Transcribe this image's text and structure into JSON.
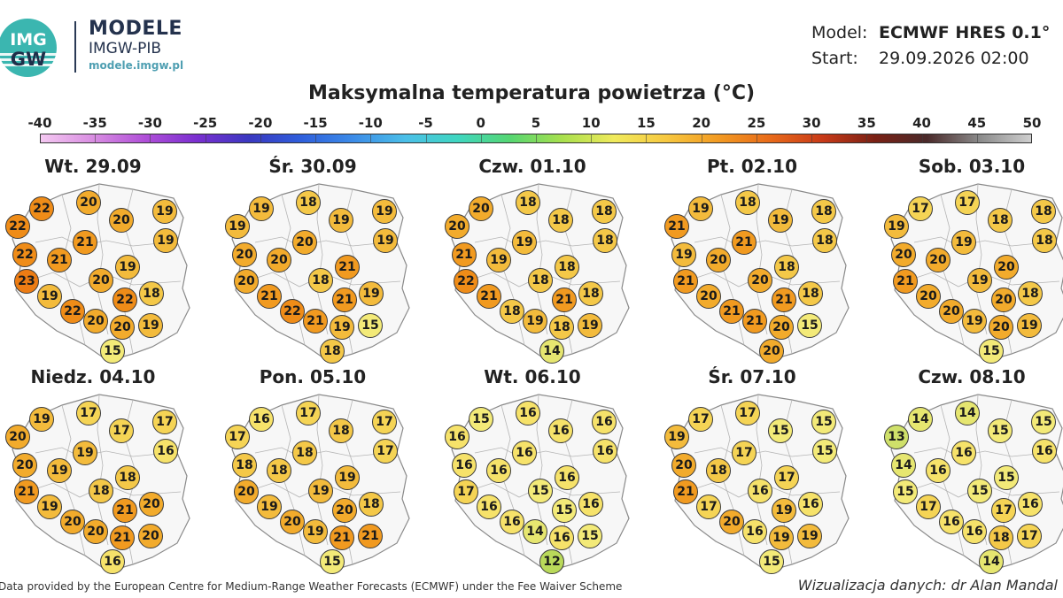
{
  "header": {
    "logo_text_top": "IMG",
    "logo_text_bottom": "GW",
    "brand_title": "MODELE",
    "brand_subtitle": "IMGW-PIB",
    "brand_url": "modele.imgw.pl",
    "model_label": "Model:",
    "model_value": "ECMWF HRES 0.1°",
    "start_label": "Start:",
    "start_value": "29.09.2026 02:00",
    "map_title": "Maksymalna temperatura powietrza (°C)"
  },
  "colorbar": {
    "ticks": [
      "-40",
      "-35",
      "-30",
      "-25",
      "-20",
      "-15",
      "-10",
      "-5",
      "0",
      "5",
      "10",
      "15",
      "20",
      "25",
      "30",
      "35",
      "40",
      "45",
      "50"
    ],
    "min": -40,
    "max": 50,
    "colors": [
      "#f4c8f1",
      "#d98ee2",
      "#b04fd8",
      "#7a2fd0",
      "#3a38c0",
      "#2f5fdc",
      "#3c8ce8",
      "#4bbfe8",
      "#3fd6c0",
      "#55d672",
      "#a8e04d",
      "#f0ea5c",
      "#f7c840",
      "#f29a22",
      "#e86a1a",
      "#c83a18",
      "#7a2014",
      "#4a2a2a",
      "#8a8a8a",
      "#cfcfcf"
    ]
  },
  "panels": [
    {
      "day": "Wt. 29.09",
      "values": [
        22,
        20,
        22,
        20,
        19,
        19,
        22,
        21,
        21,
        19,
        23,
        20,
        19,
        18,
        22,
        22,
        20,
        20,
        19,
        15
      ]
    },
    {
      "day": "Śr. 30.09",
      "values": [
        19,
        18,
        19,
        19,
        19,
        19,
        20,
        20,
        20,
        21,
        20,
        18,
        21,
        19,
        22,
        21,
        21,
        19,
        15,
        18
      ]
    },
    {
      "day": "Czw. 01.10",
      "values": [
        20,
        18,
        20,
        18,
        18,
        18,
        21,
        19,
        19,
        18,
        22,
        18,
        21,
        18,
        18,
        21,
        19,
        18,
        19,
        14
      ]
    },
    {
      "day": "Pt. 02.10",
      "values": [
        19,
        18,
        21,
        19,
        18,
        18,
        19,
        21,
        20,
        18,
        21,
        20,
        20,
        18,
        21,
        21,
        21,
        20,
        15,
        20
      ]
    },
    {
      "day": "Sob. 03.10",
      "values": [
        17,
        17,
        19,
        18,
        18,
        18,
        20,
        19,
        20,
        20,
        21,
        19,
        20,
        18,
        20,
        20,
        19,
        20,
        19,
        15
      ]
    },
    {
      "day": "Niedz. 04.10",
      "values": [
        19,
        17,
        20,
        17,
        17,
        16,
        20,
        19,
        19,
        18,
        21,
        18,
        19,
        20,
        20,
        21,
        20,
        21,
        20,
        16
      ]
    },
    {
      "day": "Pon. 05.10",
      "values": [
        16,
        17,
        17,
        18,
        17,
        17,
        18,
        18,
        18,
        19,
        20,
        19,
        19,
        18,
        20,
        20,
        19,
        21,
        21,
        15
      ]
    },
    {
      "day": "Wt. 06.10",
      "values": [
        15,
        16,
        16,
        16,
        16,
        16,
        16,
        16,
        16,
        16,
        17,
        15,
        16,
        16,
        16,
        15,
        14,
        16,
        15,
        12
      ]
    },
    {
      "day": "Śr. 07.10",
      "values": [
        17,
        17,
        19,
        15,
        15,
        15,
        20,
        17,
        18,
        17,
        21,
        16,
        17,
        16,
        20,
        19,
        16,
        19,
        19,
        15
      ]
    },
    {
      "day": "Czw. 08.10",
      "values": [
        14,
        14,
        13,
        15,
        15,
        16,
        14,
        16,
        16,
        15,
        15,
        15,
        17,
        16,
        16,
        17,
        16,
        18,
        17,
        14
      ]
    }
  ],
  "footer": {
    "credit": "Data provided by the European Centre for Medium-Range Weather Forecasts (ECMWF) under the Fee Waiver Scheme",
    "author": "Wizualizacja danych: dr Alan Mandal"
  }
}
